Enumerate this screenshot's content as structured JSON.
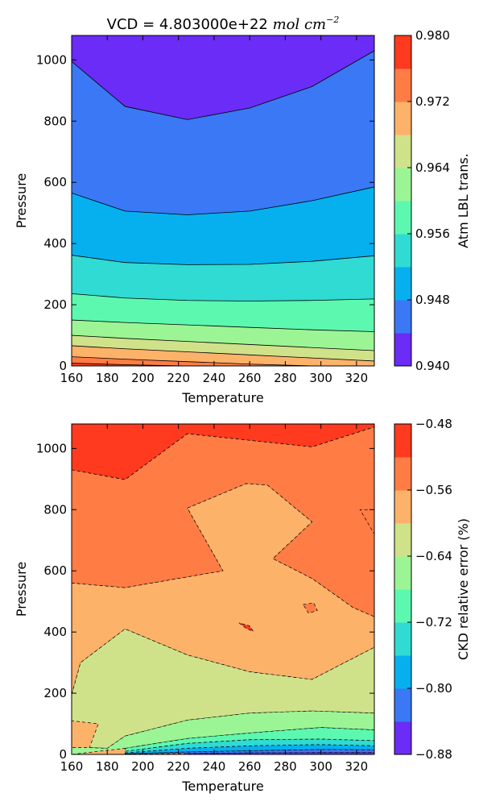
{
  "figure": {
    "title_prefix": "VCD = 4.803000e+22 ",
    "title_units": "mol cm",
    "title_exponent": "−2"
  },
  "chart_data": [
    {
      "type": "contour",
      "title": "VCD = 4.803000e+22 mol cm^-2",
      "xlabel": "Temperature",
      "ylabel": "Pressure",
      "xlim": [
        160,
        330
      ],
      "ylim": [
        0,
        1080
      ],
      "xticks": [
        160,
        180,
        200,
        220,
        240,
        260,
        280,
        300,
        320
      ],
      "yticks": [
        0,
        200,
        400,
        600,
        800,
        1000
      ],
      "colorbar": {
        "label": "Atm LBL trans.",
        "levels": [
          0.94,
          0.944,
          0.948,
          0.952,
          0.956,
          0.96,
          0.964,
          0.968,
          0.972,
          0.976,
          0.98
        ],
        "ticks": [
          "0.940",
          "0.948",
          "0.956",
          "0.964",
          "0.972",
          "0.980"
        ],
        "colors": [
          "#6a2cf6",
          "#3a78f5",
          "#06b0ef",
          "#2fdbd2",
          "#5cf8b0",
          "#9cf595",
          "#cfe28a",
          "#fdb26a",
          "#ff7c45",
          "#ff3a1e"
        ]
      },
      "contour_x": [
        160,
        190,
        225,
        260,
        295,
        330
      ],
      "contour_levels": [
        {
          "level": 0.944,
          "y": [
            995,
            848,
            805,
            843,
            913,
            1030
          ]
        },
        {
          "level": 0.948,
          "y": [
            565,
            506,
            494,
            506,
            540,
            585
          ]
        },
        {
          "level": 0.952,
          "y": [
            362,
            338,
            331,
            332,
            342,
            360
          ]
        },
        {
          "level": 0.956,
          "y": [
            236,
            222,
            214,
            212,
            214,
            219
          ]
        },
        {
          "level": 0.96,
          "y": [
            150,
            142,
            134,
            126,
            118,
            112
          ]
        },
        {
          "level": 0.964,
          "y": [
            100,
            90,
            80,
            70,
            60,
            50
          ]
        },
        {
          "level": 0.968,
          "y": [
            66,
            56,
            46,
            36,
            26,
            16
          ]
        },
        {
          "level": 0.972,
          "y": [
            30,
            22,
            14,
            6,
            0,
            0
          ]
        },
        {
          "level": 0.976,
          "y": [
            9,
            4,
            0,
            0,
            0,
            0
          ]
        }
      ]
    },
    {
      "type": "contour",
      "xlabel": "Temperature",
      "ylabel": "Pressure",
      "xlim": [
        160,
        330
      ],
      "ylim": [
        0,
        1080
      ],
      "xticks": [
        160,
        180,
        200,
        220,
        240,
        260,
        280,
        300,
        320
      ],
      "yticks": [
        0,
        200,
        400,
        600,
        800,
        1000
      ],
      "colorbar": {
        "label": "CKD relative error (%)",
        "levels": [
          -0.88,
          -0.84,
          -0.8,
          -0.76,
          -0.72,
          -0.68,
          -0.64,
          -0.6,
          -0.56,
          -0.52,
          -0.48
        ],
        "ticks": [
          "−0.48",
          "−0.56",
          "−0.64",
          "−0.72",
          "−0.80",
          "−0.88"
        ],
        "colors": [
          "#6a2cf6",
          "#3a78f5",
          "#06b0ef",
          "#2fdbd2",
          "#5cf8b0",
          "#9cf595",
          "#cfe28a",
          "#fdb26a",
          "#ff7c45",
          "#ff3a1e"
        ]
      },
      "regions": [
        {
          "level_index": 9,
          "points": [
            [
              160,
              1080
            ],
            [
              330,
              1080
            ],
            [
              330,
              1070
            ],
            [
              295,
              1005
            ],
            [
              225,
              1048
            ],
            [
              190,
              898
            ],
            [
              160,
              930
            ]
          ]
        },
        {
          "level_index": 8,
          "points": [
            [
              160,
              930
            ],
            [
              190,
              898
            ],
            [
              225,
              1048
            ],
            [
              295,
              1005
            ],
            [
              330,
              1070
            ],
            [
              330,
              720
            ],
            [
              322,
              800
            ],
            [
              330,
              800
            ],
            [
              330,
              450
            ],
            [
              318,
              480
            ],
            [
              295,
              575
            ],
            [
              273,
              640
            ],
            [
              295,
              760
            ],
            [
              270,
              880
            ],
            [
              258,
              885
            ],
            [
              225,
              805
            ],
            [
              245,
              600
            ],
            [
              225,
              580
            ],
            [
              190,
              545
            ],
            [
              160,
              560
            ]
          ]
        },
        {
          "level_index": 7,
          "points": [
            [
              160,
              560
            ],
            [
              190,
              545
            ],
            [
              225,
              580
            ],
            [
              245,
              600
            ],
            [
              225,
              805
            ],
            [
              258,
              885
            ],
            [
              270,
              880
            ],
            [
              295,
              760
            ],
            [
              273,
              640
            ],
            [
              295,
              575
            ],
            [
              318,
              480
            ],
            [
              330,
              450
            ],
            [
              330,
              350
            ],
            [
              295,
              245
            ],
            [
              260,
              270
            ],
            [
              225,
              325
            ],
            [
              190,
              410
            ],
            [
              165,
              300
            ],
            [
              160,
              195
            ]
          ]
        },
        {
          "level_index": 6,
          "points": [
            [
              160,
              195
            ],
            [
              165,
              300
            ],
            [
              190,
              410
            ],
            [
              225,
              325
            ],
            [
              260,
              270
            ],
            [
              295,
              245
            ],
            [
              330,
              350
            ],
            [
              330,
              135
            ],
            [
              295,
              142
            ],
            [
              260,
              135
            ],
            [
              225,
              112
            ],
            [
              190,
              60
            ],
            [
              180,
              20
            ],
            [
              170,
              22
            ],
            [
              175,
              100
            ],
            [
              160,
              110
            ]
          ]
        },
        {
          "level_index": 5,
          "points": [
            [
              170,
              22
            ],
            [
              180,
              20
            ],
            [
              190,
              60
            ],
            [
              225,
              112
            ],
            [
              260,
              135
            ],
            [
              295,
              142
            ],
            [
              330,
              135
            ],
            [
              330,
              80
            ],
            [
              300,
              88
            ],
            [
              260,
              70
            ],
            [
              225,
              52
            ],
            [
              190,
              20
            ],
            [
              160,
              0
            ],
            [
              160,
              22
            ]
          ]
        },
        {
          "level_index": 4,
          "points": [
            [
              190,
              20
            ],
            [
              225,
              52
            ],
            [
              260,
              70
            ],
            [
              300,
              88
            ],
            [
              330,
              80
            ],
            [
              330,
              45
            ],
            [
              300,
              50
            ],
            [
              260,
              48
            ],
            [
              225,
              36
            ],
            [
              190,
              10
            ]
          ]
        },
        {
          "level_index": 3,
          "points": [
            [
              190,
              10
            ],
            [
              225,
              36
            ],
            [
              260,
              48
            ],
            [
              300,
              50
            ],
            [
              330,
              45
            ],
            [
              330,
              28
            ],
            [
              300,
              32
            ],
            [
              260,
              28
            ],
            [
              225,
              20
            ],
            [
              190,
              5
            ]
          ]
        },
        {
          "level_index": 2,
          "points": [
            [
              190,
              5
            ],
            [
              225,
              20
            ],
            [
              260,
              28
            ],
            [
              300,
              32
            ],
            [
              330,
              28
            ],
            [
              330,
              15
            ],
            [
              300,
              16
            ],
            [
              260,
              12
            ],
            [
              225,
              8
            ],
            [
              190,
              2
            ]
          ]
        },
        {
          "level_index": 1,
          "points": [
            [
              190,
              2
            ],
            [
              225,
              8
            ],
            [
              260,
              12
            ],
            [
              300,
              16
            ],
            [
              330,
              15
            ],
            [
              330,
              6
            ],
            [
              300,
              6
            ],
            [
              260,
              5
            ],
            [
              225,
              3
            ]
          ]
        },
        {
          "level_index": 0,
          "points": [
            [
              225,
              3
            ],
            [
              260,
              5
            ],
            [
              300,
              6
            ],
            [
              330,
              6
            ],
            [
              330,
              0
            ],
            [
              225,
              0
            ]
          ]
        },
        {
          "level_index": 9,
          "points": [
            [
              254,
              430
            ],
            [
              258,
              412
            ],
            [
              262,
              402
            ],
            [
              260,
              420
            ]
          ]
        },
        {
          "level_index": 8,
          "points": [
            [
              290,
              490
            ],
            [
              296,
              495
            ],
            [
              298,
              470
            ],
            [
              293,
              462
            ]
          ]
        }
      ]
    }
  ]
}
